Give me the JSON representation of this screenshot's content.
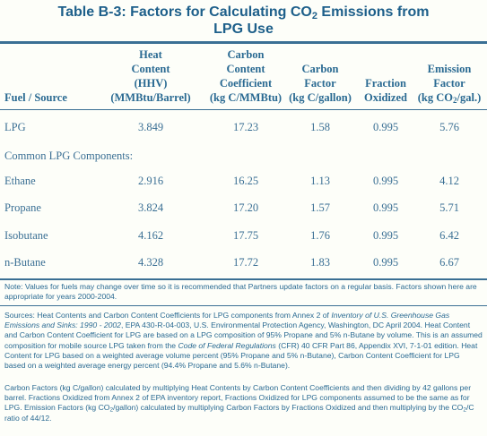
{
  "title": {
    "line1_pre": "Table B-3: Factors for Calculating CO",
    "line1_sub": "2",
    "line1_post": " Emissions from",
    "line2": "LPG Use"
  },
  "headers": {
    "fuel_source": "Fuel / Source",
    "heat_content": [
      "Heat",
      "Content",
      "(HHV)",
      "(MMBtu/Barrel)"
    ],
    "carbon_content": [
      "Carbon",
      "Content",
      "Coefficient",
      "(kg C/MMBtu)"
    ],
    "carbon_factor": [
      "Carbon",
      "Factor",
      "(kg C/gallon)"
    ],
    "fraction_oxidized": [
      "Fraction",
      "Oxidized"
    ],
    "emission_factor": [
      "Emission",
      "Factor"
    ],
    "emission_unit_pre": "(kg CO",
    "emission_unit_sub": "2",
    "emission_unit_post": "/gal.)"
  },
  "rows": [
    {
      "source": "LPG",
      "heat": "3.849",
      "carbon_content": "17.23",
      "carbon_factor": "1.58",
      "fraction": "0.995",
      "emission": "5.76"
    },
    {
      "source": "Ethane",
      "heat": "2.916",
      "carbon_content": "16.25",
      "carbon_factor": "1.13",
      "fraction": "0.995",
      "emission": "4.12"
    },
    {
      "source": "Propane",
      "heat": "3.824",
      "carbon_content": "17.20",
      "carbon_factor": "1.57",
      "fraction": "0.995",
      "emission": "5.71"
    },
    {
      "source": "Isobutane",
      "heat": "4.162",
      "carbon_content": "17.75",
      "carbon_factor": "1.76",
      "fraction": "0.995",
      "emission": "6.42"
    },
    {
      "source": "n-Butane",
      "heat": "4.328",
      "carbon_content": "17.72",
      "carbon_factor": "1.83",
      "fraction": "0.995",
      "emission": "6.67"
    }
  ],
  "section_label": "Common LPG Components:",
  "notes": {
    "note": "Note: Values for fuels may change over time so it is recommended that Partners update factors on a regular basis. Factors shown here are appropriate for years 2000-2004.",
    "sources_1": "Sources: Heat Contents and Carbon Content Coefficients for LPG components from Annex 2 of ",
    "sources_italic_1": "Inventory of U.S. Greenhouse Gas Emissions and Sinks: 1990 - 2002",
    "sources_2": ", EPA 430-R-04-003, U.S. Environmental Protection Agency, Washington, DC April 2004. Heat Content and Carbon Content Coefficient for LPG are based on a LPG composition of 95% Propane and 5% n-Butane by volume. This is an assumed composition for mobile source LPG taken from the ",
    "sources_italic_2": "Code of Federal Regulations",
    "sources_3": " (CFR) 40 CFR Part 86, Appendix XVI, 7-1-01 edition. Heat Content for LPG based on a weighted average volume percent (95% Propane and 5% n-Butane), Carbon Content Coefficient for LPG based on a weighted average energy percent (94.4% Propane and 5.6% n-Butane).",
    "factors_1": "Carbon Factors (kg C/gallon) calculated by multiplying Heat Contents by Carbon Content Coefficients and then dividing by 42 gallons per barrel. Fractions Oxidized from Annex 2 of EPA inventory report, Fractions Oxidized for LPG components assumed to be the same as for LPG. Emission Factors (kg CO",
    "factors_sub_1": "2",
    "factors_2": "/gallon) calculated by multiplying Carbon Factors by Fractions Oxidized and then multiplying by the CO",
    "factors_sub_2": "2",
    "factors_3": "/C ratio of 44/12."
  },
  "colors": {
    "text": "#2a6a92",
    "rule": "#3a6f94",
    "background": "#fdfef9"
  }
}
